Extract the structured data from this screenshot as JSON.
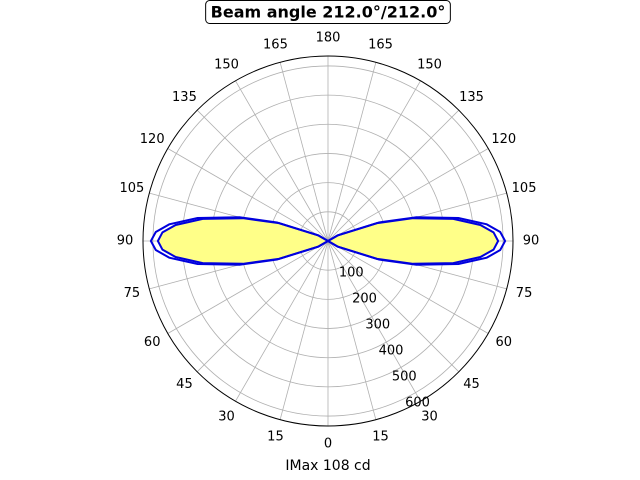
{
  "chart_data": {
    "type": "polar",
    "title": "Beam angle 212.0°/212.0°",
    "xlabel": "IMax 108 cd",
    "ylim": [
      0,
      634
    ],
    "yticks": [
      100,
      200,
      300,
      400,
      500,
      600
    ],
    "xticks": [
      0,
      15,
      30,
      45,
      60,
      75,
      90,
      105,
      120,
      135,
      150,
      165,
      180,
      {
        "value": 195,
        "label": "165"
      },
      {
        "value": 210,
        "label": "150"
      },
      {
        "value": 225,
        "label": "135"
      },
      {
        "value": 240,
        "label": "120"
      },
      {
        "value": 255,
        "label": "105"
      },
      {
        "value": 270,
        "label": "90"
      },
      {
        "value": 285,
        "label": "75"
      },
      {
        "value": 300,
        "label": "60"
      },
      {
        "value": 315,
        "label": "45"
      },
      {
        "value": 330,
        "label": "30"
      },
      {
        "value": 345,
        "label": "15"
      }
    ],
    "grid": true,
    "series": [
      {
        "color": "#0000dd",
        "theta": [
          0,
          30,
          60,
          70,
          75,
          80,
          84,
          87,
          90,
          93,
          96,
          100,
          105,
          110,
          120,
          150,
          180,
          210,
          240,
          250,
          255,
          260,
          264,
          267,
          270,
          273,
          276,
          280,
          285,
          290,
          300,
          330,
          360
        ],
        "r": [
          0,
          0,
          39,
          186,
          314,
          454,
          547,
          591,
          607,
          591,
          547,
          454,
          314,
          186,
          39,
          0,
          0,
          0,
          39,
          186,
          314,
          454,
          547,
          591,
          607,
          591,
          547,
          454,
          314,
          186,
          39,
          0,
          0
        ]
      },
      {
        "color": "#0000dd",
        "fill": "#ffff88",
        "theta": [
          0,
          30,
          60,
          70,
          75,
          80,
          84,
          87,
          90,
          93,
          96,
          100,
          105,
          110,
          120,
          150,
          180,
          210,
          240,
          250,
          255,
          260,
          264,
          267,
          270,
          273,
          276,
          280,
          285,
          290,
          300,
          330,
          360
        ],
        "r": [
          0,
          0,
          38,
          179,
          302,
          436,
          525,
          568,
          583,
          568,
          525,
          436,
          302,
          179,
          38,
          0,
          0,
          0,
          38,
          179,
          302,
          436,
          525,
          568,
          583,
          568,
          525,
          436,
          302,
          179,
          38,
          0,
          0
        ]
      }
    ]
  }
}
